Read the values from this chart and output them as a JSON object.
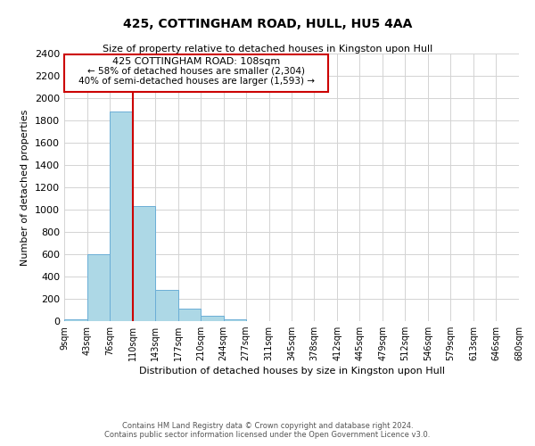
{
  "title": "425, COTTINGHAM ROAD, HULL, HU5 4AA",
  "subtitle": "Size of property relative to detached houses in Kingston upon Hull",
  "xlabel": "Distribution of detached houses by size in Kingston upon Hull",
  "ylabel": "Number of detached properties",
  "footer_line1": "Contains HM Land Registry data © Crown copyright and database right 2024.",
  "footer_line2": "Contains public sector information licensed under the Open Government Licence v3.0.",
  "bin_edges": [
    9,
    43,
    76,
    110,
    143,
    177,
    210,
    244,
    277,
    311,
    345,
    378,
    412,
    445,
    479,
    512,
    546,
    579,
    613,
    646,
    680
  ],
  "bar_heights": [
    20,
    600,
    1880,
    1030,
    280,
    110,
    45,
    20,
    0,
    0,
    0,
    0,
    0,
    0,
    0,
    0,
    0,
    0,
    0,
    0
  ],
  "property_line_x": 110,
  "bar_color": "#add8e6",
  "bar_edge_color": "#6baed6",
  "property_line_color": "#cc0000",
  "annotation_title": "425 COTTINGHAM ROAD: 108sqm",
  "annotation_line1": "← 58% of detached houses are smaller (2,304)",
  "annotation_line2": "40% of semi-detached houses are larger (1,593) →",
  "ylim": [
    0,
    2400
  ],
  "yticks": [
    0,
    200,
    400,
    600,
    800,
    1000,
    1200,
    1400,
    1600,
    1800,
    2000,
    2200,
    2400
  ],
  "annotation_box_color": "#ffffff",
  "annotation_box_edge": "#cc0000",
  "grid_color": "#d3d3d3",
  "title_fontsize": 10,
  "subtitle_fontsize": 8,
  "ylabel_fontsize": 8,
  "xlabel_fontsize": 8,
  "ytick_fontsize": 8,
  "xtick_fontsize": 7
}
